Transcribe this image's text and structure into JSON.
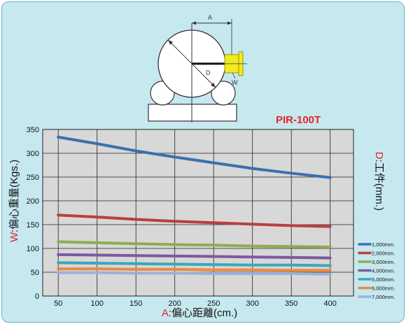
{
  "model_title": "PIR-100T",
  "diagram": {
    "label_a": "A",
    "label_d": "D",
    "label_w": "W"
  },
  "colors": {
    "frame_bg": "#c6e8ef",
    "plot_bg": "#d8d8d8",
    "title_red": "#e8262a",
    "weight_yellow": "#f2ea1c"
  },
  "chart_data": {
    "type": "line",
    "title": "PIR-100T",
    "xlabel": {
      "prefix": "A",
      "text": ":偏心距離(cm.)"
    },
    "ylabel": {
      "prefix": "W",
      "text": ":偏心重量(Kgs.)"
    },
    "right_label": {
      "prefix": "D",
      "text": ":工件(mm.)"
    },
    "xlim": [
      30,
      430
    ],
    "ylim": [
      0,
      350
    ],
    "x_ticks": [
      50,
      100,
      150,
      200,
      250,
      300,
      350,
      400
    ],
    "y_ticks": [
      0,
      50,
      100,
      150,
      200,
      250,
      300,
      350
    ],
    "grid": true,
    "legend_position": "right",
    "x": [
      50,
      100,
      150,
      200,
      250,
      300,
      350,
      400
    ],
    "series": [
      {
        "name": "1,000mm.",
        "color": "#3c6fae",
        "values": [
          334,
          320,
          305,
          292,
          280,
          268,
          258,
          249
        ]
      },
      {
        "name": "2,000mm.",
        "color": "#b9403f",
        "values": [
          170,
          166,
          161,
          157,
          154,
          151,
          148,
          146
        ]
      },
      {
        "name": "3,000mm.",
        "color": "#8fac50",
        "values": [
          114,
          112,
          110,
          108,
          107,
          105,
          104,
          103
        ]
      },
      {
        "name": "4,000mm.",
        "color": "#7c5a9e",
        "values": [
          87,
          86,
          85,
          84,
          83,
          82,
          81,
          80
        ]
      },
      {
        "name": "5,000mm.",
        "color": "#3aa7bc",
        "values": [
          70,
          69,
          68,
          67,
          66,
          65,
          65,
          64
        ]
      },
      {
        "name": "6,000mm.",
        "color": "#ec8a3c",
        "values": [
          57,
          57,
          56,
          56,
          55,
          55,
          54,
          54
        ]
      },
      {
        "name": "7,000mm.",
        "color": "#9ab2da",
        "values": [
          49,
          49,
          48,
          48,
          47,
          47,
          47,
          46
        ]
      }
    ]
  }
}
